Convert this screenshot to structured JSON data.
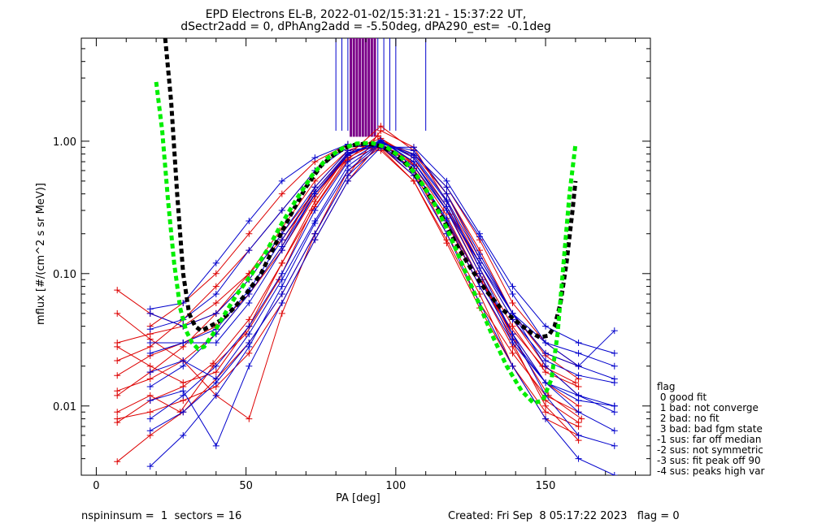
{
  "title_line1": "EPD Electrons EL-B, 2022-01-02/15:31:21 - 15:37:22 UT,",
  "title_line2": "dSectr2add = 0, dPhAng2add = -5.50deg, dPA290_est=  -0.1deg",
  "footer_left": "nspininsum =  1  sectors = 16",
  "footer_right": "Created: Fri Sep  8 05:17:22 2023   flag = 0",
  "legend": {
    "title": "flag",
    "items": [
      " 0 good fit",
      " 1 bad: not converge",
      " 2 bad: no fit",
      " 3 bad: bad fgm state",
      "-1 sus: far off median",
      "-2 sus: not symmetric",
      "-3 sus: fit peak off 90",
      "-4 sus: peaks high var"
    ]
  },
  "colors": {
    "red": "#dd0000",
    "blue": "#0000cc",
    "green": "#00ee00",
    "black": "#000000",
    "purple": "#7a0088"
  },
  "chart_data": {
    "type": "line",
    "title": "EPD Electrons EL-B, 2022-01-02/15:31:21 - 15:37:22 UT, dSectr2add = 0, dPhAng2add = -5.50deg, dPA290_est=  -0.1deg",
    "xlabel": "PA [deg]",
    "ylabel": "mflux [#/(cm^2 s sr MeV)]",
    "xlim": [
      -5,
      185
    ],
    "ylim": [
      0.003,
      6
    ],
    "yscale": "log",
    "xticks": [
      0,
      50,
      100,
      150
    ],
    "yticks": [
      0.01,
      0.1,
      1.0
    ],
    "ytick_labels": [
      "0.01",
      "0.10",
      "1.00"
    ],
    "vertical_lines": {
      "blue_x": [
        80,
        82,
        84,
        86,
        88,
        90,
        92,
        94,
        96,
        98,
        100,
        110
      ],
      "purple_x": [
        85,
        86,
        87,
        88,
        89,
        90,
        91,
        92,
        93
      ],
      "y_from": 1.2,
      "y_to": 6
    },
    "series": [
      {
        "color": "red",
        "x": [
          7,
          18,
          29,
          39,
          51,
          62,
          73,
          84,
          95,
          107,
          118,
          129,
          140,
          151,
          162
        ],
        "y": [
          0.0075,
          0.011,
          0.014,
          0.021,
          0.045,
          0.12,
          0.35,
          0.8,
          0.95,
          0.65,
          0.28,
          0.09,
          0.03,
          0.012,
          0.008
        ]
      },
      {
        "color": "red",
        "x": [
          7,
          18,
          29,
          40,
          51,
          62,
          73,
          84,
          95,
          106,
          117,
          128,
          139,
          150,
          161
        ],
        "y": [
          0.012,
          0.018,
          0.028,
          0.05,
          0.1,
          0.22,
          0.5,
          0.85,
          0.9,
          0.55,
          0.25,
          0.09,
          0.035,
          0.015,
          0.01
        ]
      },
      {
        "color": "red",
        "x": [
          7,
          18,
          29,
          40,
          51,
          62,
          73,
          84,
          95,
          106,
          117,
          128,
          139,
          150,
          161
        ],
        "y": [
          0.03,
          0.035,
          0.04,
          0.06,
          0.1,
          0.18,
          0.4,
          0.75,
          1.0,
          0.8,
          0.4,
          0.15,
          0.05,
          0.025,
          0.02
        ]
      },
      {
        "color": "red",
        "x": [
          7,
          18,
          28,
          39,
          50,
          61,
          72,
          83,
          94,
          105,
          116,
          127,
          138,
          149,
          160
        ],
        "y": [
          0.009,
          0.012,
          0.009,
          0.02,
          0.035,
          0.09,
          0.3,
          0.7,
          1.1,
          0.7,
          0.3,
          0.1,
          0.04,
          0.02,
          0.015
        ]
      },
      {
        "color": "red",
        "x": [
          7,
          18,
          29,
          40,
          51,
          62,
          73,
          84,
          95,
          106,
          117,
          128,
          139,
          150,
          161
        ],
        "y": [
          0.05,
          0.032,
          0.022,
          0.012,
          0.008,
          0.05,
          0.2,
          0.6,
          0.9,
          0.6,
          0.2,
          0.07,
          0.02,
          0.008,
          0.006
        ]
      },
      {
        "color": "red",
        "x": [
          7,
          18,
          29,
          40,
          51,
          62,
          73,
          84,
          95,
          106,
          117,
          128,
          139,
          150,
          161
        ],
        "y": [
          0.022,
          0.028,
          0.045,
          0.08,
          0.15,
          0.3,
          0.6,
          0.95,
          0.85,
          0.5,
          0.18,
          0.06,
          0.025,
          0.012,
          0.009
        ]
      },
      {
        "color": "red",
        "x": [
          7,
          18,
          29,
          40,
          51,
          62,
          73,
          84,
          95,
          106,
          117,
          128,
          139,
          150,
          161
        ],
        "y": [
          0.017,
          0.024,
          0.03,
          0.04,
          0.07,
          0.16,
          0.45,
          0.85,
          1.05,
          0.75,
          0.32,
          0.11,
          0.04,
          0.018,
          0.014
        ]
      },
      {
        "color": "red",
        "x": [
          7,
          18,
          29,
          40,
          51,
          62,
          73,
          84,
          95,
          106,
          117,
          128,
          139,
          150,
          161
        ],
        "y": [
          0.0038,
          0.006,
          0.009,
          0.016,
          0.03,
          0.07,
          0.2,
          0.55,
          1.2,
          0.9,
          0.35,
          0.12,
          0.045,
          0.02,
          0.012
        ]
      },
      {
        "color": "red",
        "x": [
          7,
          18,
          29,
          40,
          51,
          62,
          73,
          84,
          95,
          106,
          117,
          128,
          139,
          150,
          161
        ],
        "y": [
          0.075,
          0.05,
          0.04,
          0.05,
          0.09,
          0.2,
          0.42,
          0.8,
          0.95,
          0.7,
          0.3,
          0.1,
          0.03,
          0.01,
          0.0055
        ]
      },
      {
        "color": "red",
        "x": [
          7,
          18,
          29,
          40,
          51,
          62,
          73,
          84,
          95,
          106,
          117,
          128,
          139,
          150,
          161
        ],
        "y": [
          0.013,
          0.016,
          0.022,
          0.035,
          0.07,
          0.15,
          0.38,
          0.78,
          1.3,
          0.85,
          0.4,
          0.13,
          0.05,
          0.024,
          0.016
        ]
      },
      {
        "color": "red",
        "x": [
          7,
          18,
          29,
          40,
          51,
          62,
          73,
          84,
          95,
          106,
          117,
          128,
          139,
          150,
          161
        ],
        "y": [
          0.008,
          0.009,
          0.011,
          0.014,
          0.025,
          0.06,
          0.18,
          0.5,
          1.0,
          0.8,
          0.45,
          0.18,
          0.06,
          0.03,
          0.02
        ]
      },
      {
        "color": "red",
        "x": [
          7,
          18,
          29,
          40,
          51,
          62,
          73,
          84,
          95,
          106,
          117,
          128,
          139,
          150,
          161
        ],
        "y": [
          0.028,
          0.02,
          0.015,
          0.018,
          0.04,
          0.12,
          0.32,
          0.72,
          0.92,
          0.62,
          0.24,
          0.08,
          0.028,
          0.011,
          0.0075
        ]
      },
      {
        "color": "red",
        "x": [
          18,
          29,
          40,
          51,
          62,
          73,
          84,
          95,
          106,
          117,
          128,
          139,
          150,
          161
        ],
        "y": [
          0.04,
          0.06,
          0.1,
          0.2,
          0.4,
          0.7,
          0.95,
          0.88,
          0.5,
          0.17,
          0.055,
          0.02,
          0.009,
          0.007
        ]
      },
      {
        "color": "blue",
        "x": [
          18,
          29,
          40,
          51,
          62,
          73,
          84,
          95,
          106,
          117,
          128,
          139,
          150,
          161,
          173
        ],
        "y": [
          0.054,
          0.06,
          0.12,
          0.25,
          0.5,
          0.75,
          0.95,
          0.9,
          0.6,
          0.25,
          0.08,
          0.03,
          0.015,
          0.012,
          0.01
        ]
      },
      {
        "color": "blue",
        "x": [
          18,
          29,
          40,
          51,
          62,
          73,
          84,
          95,
          106,
          117,
          128,
          139,
          150,
          161,
          173
        ],
        "y": [
          0.008,
          0.012,
          0.02,
          0.04,
          0.1,
          0.3,
          0.7,
          1.0,
          0.7,
          0.3,
          0.1,
          0.035,
          0.015,
          0.009,
          0.0065
        ]
      },
      {
        "color": "blue",
        "x": [
          18,
          29,
          40,
          51,
          62,
          73,
          84,
          95,
          106,
          117,
          128,
          139,
          150,
          161,
          173
        ],
        "y": [
          0.038,
          0.045,
          0.07,
          0.15,
          0.3,
          0.6,
          0.9,
          0.95,
          0.65,
          0.3,
          0.12,
          0.05,
          0.03,
          0.025,
          0.02
        ]
      },
      {
        "color": "blue",
        "x": [
          18,
          29,
          40,
          51,
          62,
          73,
          84,
          95,
          106,
          117,
          128,
          139,
          150,
          161,
          173
        ],
        "y": [
          0.0065,
          0.009,
          0.015,
          0.03,
          0.07,
          0.2,
          0.55,
          0.95,
          0.85,
          0.4,
          0.14,
          0.05,
          0.02,
          0.012,
          0.009
        ]
      },
      {
        "color": "blue",
        "x": [
          18,
          29,
          40,
          51,
          62,
          73,
          84,
          95,
          106,
          117,
          128,
          139,
          150,
          161,
          173
        ],
        "y": [
          0.03,
          0.03,
          0.03,
          0.06,
          0.15,
          0.4,
          0.8,
          1.0,
          0.75,
          0.35,
          0.11,
          0.035,
          0.012,
          0.006,
          0.005
        ]
      },
      {
        "color": "blue",
        "x": [
          18,
          29,
          40,
          51,
          62,
          73,
          84,
          95,
          106,
          117,
          128,
          139,
          150,
          161,
          173
        ],
        "y": [
          0.018,
          0.022,
          0.016,
          0.035,
          0.09,
          0.25,
          0.65,
          0.98,
          0.8,
          0.45,
          0.19,
          0.07,
          0.03,
          0.02,
          0.016
        ]
      },
      {
        "color": "blue",
        "x": [
          18,
          29,
          40,
          51,
          62,
          73,
          84,
          95,
          106,
          117,
          128,
          139,
          150,
          161,
          173
        ],
        "y": [
          0.05,
          0.04,
          0.05,
          0.09,
          0.2,
          0.45,
          0.85,
          0.92,
          0.55,
          0.2,
          0.06,
          0.02,
          0.008,
          0.004,
          0.003
        ]
      },
      {
        "color": "blue",
        "x": [
          18,
          29,
          40,
          51,
          62,
          73,
          84,
          95,
          106,
          117,
          128,
          139,
          150,
          161,
          173
        ],
        "y": [
          0.014,
          0.02,
          0.035,
          0.07,
          0.16,
          0.4,
          0.78,
          1.02,
          0.7,
          0.32,
          0.12,
          0.045,
          0.022,
          0.017,
          0.015
        ]
      },
      {
        "color": "blue",
        "x": [
          18,
          29,
          40,
          51,
          62,
          73,
          84,
          95,
          106,
          117,
          128,
          139,
          150,
          161,
          173
        ],
        "y": [
          0.0035,
          0.006,
          0.012,
          0.028,
          0.08,
          0.24,
          0.6,
          0.97,
          0.78,
          0.36,
          0.13,
          0.05,
          0.025,
          0.02,
          0.037
        ]
      },
      {
        "color": "blue",
        "x": [
          18,
          29,
          40,
          51,
          62,
          73,
          84,
          95,
          106,
          117,
          128,
          139,
          150,
          161,
          173
        ],
        "y": [
          0.025,
          0.03,
          0.038,
          0.075,
          0.18,
          0.42,
          0.82,
          0.94,
          0.6,
          0.26,
          0.09,
          0.032,
          0.015,
          0.011,
          0.01
        ]
      },
      {
        "color": "blue",
        "x": [
          18,
          29,
          40,
          51,
          62,
          73,
          84,
          95,
          106,
          117,
          128,
          139,
          150,
          161,
          173
        ],
        "y": [
          0.011,
          0.013,
          0.005,
          0.02,
          0.06,
          0.18,
          0.5,
          0.9,
          0.9,
          0.5,
          0.2,
          0.08,
          0.04,
          0.03,
          0.025
        ]
      }
    ],
    "median_curve": {
      "color": "black",
      "x": [
        23,
        25,
        27,
        29,
        31,
        33,
        35,
        38,
        42,
        46,
        50,
        55,
        60,
        65,
        70,
        75,
        80,
        85,
        90,
        95,
        100,
        105,
        110,
        115,
        120,
        125,
        130,
        135,
        140,
        145,
        148,
        151,
        153,
        155,
        157,
        159,
        160
      ],
      "y": [
        6,
        2.0,
        0.4,
        0.1,
        0.05,
        0.04,
        0.037,
        0.04,
        0.045,
        0.055,
        0.07,
        0.1,
        0.17,
        0.28,
        0.45,
        0.65,
        0.82,
        0.93,
        0.96,
        0.92,
        0.8,
        0.62,
        0.43,
        0.28,
        0.17,
        0.11,
        0.075,
        0.055,
        0.044,
        0.036,
        0.033,
        0.034,
        0.04,
        0.06,
        0.12,
        0.3,
        0.5
      ]
    },
    "fit_curve": {
      "color": "green",
      "x": [
        20,
        22,
        24,
        26,
        28,
        30,
        32,
        34,
        36,
        39,
        43,
        47,
        52,
        57,
        62,
        67,
        72,
        77,
        82,
        87,
        92,
        97,
        102,
        107,
        112,
        117,
        122,
        127,
        132,
        137,
        142,
        146,
        149,
        152,
        154,
        156,
        158,
        160
      ],
      "y": [
        2.8,
        1.2,
        0.35,
        0.12,
        0.055,
        0.037,
        0.03,
        0.027,
        0.028,
        0.035,
        0.05,
        0.07,
        0.1,
        0.15,
        0.24,
        0.37,
        0.55,
        0.74,
        0.88,
        0.96,
        0.97,
        0.9,
        0.75,
        0.55,
        0.37,
        0.22,
        0.12,
        0.065,
        0.035,
        0.02,
        0.013,
        0.0105,
        0.011,
        0.016,
        0.035,
        0.12,
        0.4,
        0.95
      ]
    }
  }
}
